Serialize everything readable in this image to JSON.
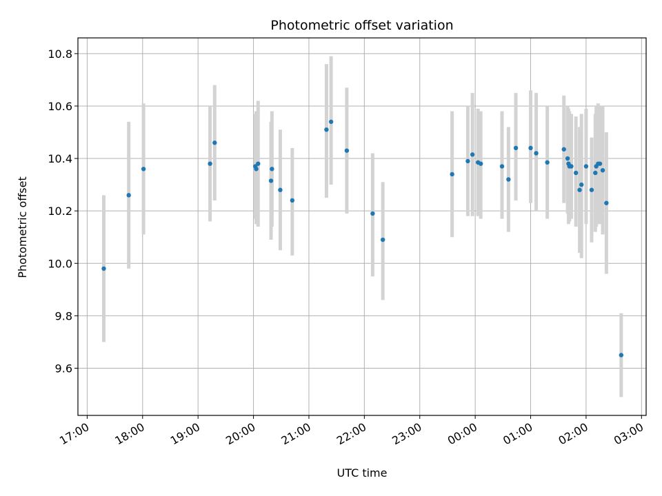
{
  "chart_data": {
    "type": "scatter",
    "title": "Photometric offset variation",
    "xlabel": "UTC time",
    "ylabel": "Photometric offset",
    "x_axis": "time",
    "x_start_time": "16:50",
    "x_end_time": "03:05",
    "xticks": [
      "17:00",
      "18:00",
      "19:00",
      "20:00",
      "21:00",
      "22:00",
      "23:00",
      "00:00",
      "01:00",
      "02:00",
      "03:00"
    ],
    "ylim": [
      9.42,
      10.86
    ],
    "yticks": [
      "9.6",
      "9.8",
      "10.0",
      "10.2",
      "10.4",
      "10.6",
      "10.8"
    ],
    "grid": true,
    "point_color": "#1f77b4",
    "errorbar_color": "#d3d3d3",
    "points": [
      {
        "x": "17:18",
        "y": 9.98,
        "lo": 9.7,
        "hi": 10.26
      },
      {
        "x": "17:45",
        "y": 10.26,
        "lo": 9.98,
        "hi": 10.54
      },
      {
        "x": "18:01",
        "y": 10.36,
        "lo": 10.11,
        "hi": 10.61
      },
      {
        "x": "19:13",
        "y": 10.38,
        "lo": 10.16,
        "hi": 10.6
      },
      {
        "x": "19:18",
        "y": 10.46,
        "lo": 10.24,
        "hi": 10.68
      },
      {
        "x": "20:02",
        "y": 10.37,
        "lo": 10.17,
        "hi": 10.57
      },
      {
        "x": "20:03",
        "y": 10.36,
        "lo": 10.15,
        "hi": 10.58
      },
      {
        "x": "20:05",
        "y": 10.38,
        "lo": 10.14,
        "hi": 10.62
      },
      {
        "x": "20:19",
        "y": 10.315,
        "lo": 10.09,
        "hi": 10.54
      },
      {
        "x": "20:20",
        "y": 10.36,
        "lo": 10.14,
        "hi": 10.58
      },
      {
        "x": "20:29",
        "y": 10.28,
        "lo": 10.05,
        "hi": 10.51
      },
      {
        "x": "20:42",
        "y": 10.24,
        "lo": 10.03,
        "hi": 10.44
      },
      {
        "x": "21:19",
        "y": 10.51,
        "lo": 10.25,
        "hi": 10.76
      },
      {
        "x": "21:24",
        "y": 10.54,
        "lo": 10.3,
        "hi": 10.79
      },
      {
        "x": "21:41",
        "y": 10.43,
        "lo": 10.19,
        "hi": 10.67
      },
      {
        "x": "22:09",
        "y": 10.19,
        "lo": 9.95,
        "hi": 10.42
      },
      {
        "x": "22:20",
        "y": 10.09,
        "lo": 9.86,
        "hi": 10.31
      },
      {
        "x": "23:35",
        "y": 10.34,
        "lo": 10.1,
        "hi": 10.58
      },
      {
        "x": "23:52",
        "y": 10.39,
        "lo": 10.18,
        "hi": 10.6
      },
      {
        "x": "23:57",
        "y": 10.415,
        "lo": 10.18,
        "hi": 10.65
      },
      {
        "x": "00:03",
        "y": 10.385,
        "lo": 10.18,
        "hi": 10.59
      },
      {
        "x": "00:06",
        "y": 10.38,
        "lo": 10.17,
        "hi": 10.58
      },
      {
        "x": "00:29",
        "y": 10.37,
        "lo": 10.17,
        "hi": 10.58
      },
      {
        "x": "00:36",
        "y": 10.32,
        "lo": 10.12,
        "hi": 10.52
      },
      {
        "x": "00:44",
        "y": 10.44,
        "lo": 10.24,
        "hi": 10.65
      },
      {
        "x": "01:00",
        "y": 10.44,
        "lo": 10.23,
        "hi": 10.66
      },
      {
        "x": "01:06",
        "y": 10.42,
        "lo": 10.2,
        "hi": 10.65
      },
      {
        "x": "01:18",
        "y": 10.385,
        "lo": 10.17,
        "hi": 10.6
      },
      {
        "x": "01:36",
        "y": 10.435,
        "lo": 10.23,
        "hi": 10.64
      },
      {
        "x": "01:40",
        "y": 10.4,
        "lo": 10.19,
        "hi": 10.6
      },
      {
        "x": "01:41",
        "y": 10.38,
        "lo": 10.15,
        "hi": 10.59
      },
      {
        "x": "01:42",
        "y": 10.37,
        "lo": 10.16,
        "hi": 10.58
      },
      {
        "x": "01:44",
        "y": 10.37,
        "lo": 10.17,
        "hi": 10.57
      },
      {
        "x": "01:49",
        "y": 10.345,
        "lo": 10.14,
        "hi": 10.56
      },
      {
        "x": "01:53",
        "y": 10.28,
        "lo": 10.04,
        "hi": 10.52
      },
      {
        "x": "01:55",
        "y": 10.3,
        "lo": 10.02,
        "hi": 10.57
      },
      {
        "x": "02:00",
        "y": 10.37,
        "lo": 10.15,
        "hi": 10.59
      },
      {
        "x": "02:06",
        "y": 10.28,
        "lo": 10.08,
        "hi": 10.48
      },
      {
        "x": "02:10",
        "y": 10.345,
        "lo": 10.12,
        "hi": 10.57
      },
      {
        "x": "02:11",
        "y": 10.37,
        "lo": 10.14,
        "hi": 10.6
      },
      {
        "x": "02:13",
        "y": 10.38,
        "lo": 10.15,
        "hi": 10.61
      },
      {
        "x": "02:15",
        "y": 10.38,
        "lo": 10.15,
        "hi": 10.6
      },
      {
        "x": "02:18",
        "y": 10.355,
        "lo": 10.11,
        "hi": 10.6
      },
      {
        "x": "02:22",
        "y": 10.23,
        "lo": 9.96,
        "hi": 10.5
      },
      {
        "x": "02:38",
        "y": 9.65,
        "lo": 9.49,
        "hi": 9.81
      }
    ]
  }
}
